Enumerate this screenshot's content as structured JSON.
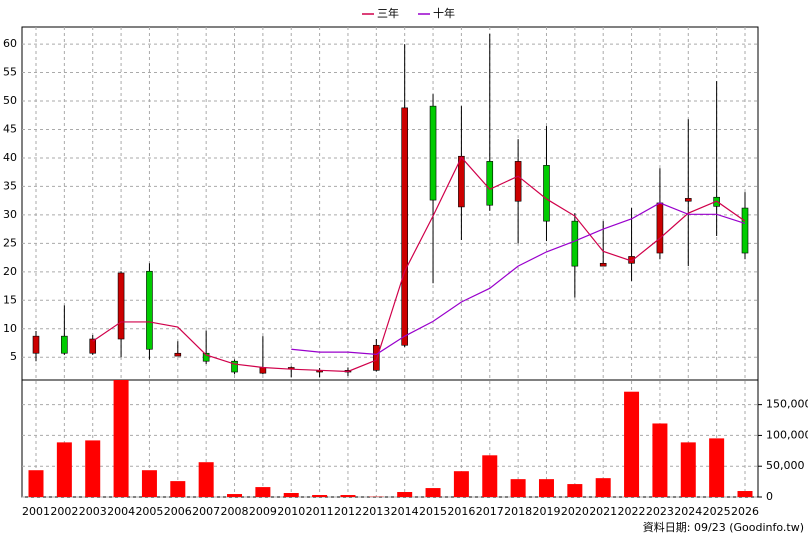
{
  "chart_data": [
    {
      "type": "candlestick",
      "categories": [
        "2001",
        "2002",
        "2003",
        "2004",
        "2005",
        "2006",
        "2007",
        "2008",
        "2009",
        "2010",
        "2011",
        "2012",
        "2013",
        "2014",
        "2015",
        "2016",
        "2017",
        "2018",
        "2019",
        "2020",
        "2021",
        "2022",
        "2023",
        "2024",
        "2025",
        "2026"
      ],
      "open": [
        5.7,
        8.7,
        5.7,
        8.2,
        20.1,
        5.2,
        5.7,
        4.3,
        2.2,
        2.9,
        2.4,
        2.4,
        2.7,
        7.1,
        49.1,
        31.4,
        39.4,
        32.4,
        38.7,
        28.9,
        21.0,
        21.5,
        23.3,
        32.4,
        33.1,
        31.2
      ],
      "close": [
        8.7,
        5.7,
        8.2,
        19.8,
        6.4,
        5.7,
        4.3,
        2.4,
        3.2,
        3.2,
        2.7,
        2.7,
        7.1,
        48.8,
        32.6,
        40.3,
        31.7,
        39.4,
        28.9,
        21.0,
        21.5,
        22.7,
        32.1,
        32.9,
        31.5,
        23.3
      ],
      "high": [
        9.6,
        14.1,
        8.9,
        20.1,
        21.5,
        7.8,
        9.7,
        4.6,
        8.7,
        3.4,
        3.1,
        3.2,
        8.2,
        60.0,
        51.2,
        49.1,
        61.8,
        43.3,
        45.6,
        30.3,
        28.9,
        31.2,
        38.2,
        46.8,
        53.5,
        34.0
      ],
      "low": [
        4.3,
        5.4,
        5.4,
        5.0,
        4.6,
        5.2,
        3.8,
        2.0,
        2.0,
        1.5,
        1.5,
        1.7,
        2.5,
        6.8,
        18.0,
        25.6,
        30.7,
        25.0,
        25.4,
        15.5,
        21.0,
        18.4,
        22.2,
        21.0,
        26.3,
        22.2
      ],
      "up_color": "#cc0000",
      "down_color": "#00cc00",
      "series": [
        {
          "name": "三年",
          "color": "#d0004a",
          "values": [
            null,
            null,
            7.8,
            11.2,
            11.2,
            10.3,
            5.4,
            3.8,
            3.2,
            2.9,
            2.7,
            2.5,
            4.5,
            20.1,
            29.8,
            40.1,
            34.5,
            36.8,
            32.8,
            29.8,
            23.6,
            21.9,
            25.9,
            30.3,
            32.4,
            28.9
          ]
        },
        {
          "name": "十年",
          "color": "#9900cc",
          "values": [
            null,
            null,
            null,
            null,
            null,
            null,
            null,
            null,
            null,
            6.4,
            5.9,
            5.9,
            5.5,
            8.7,
            11.3,
            14.7,
            17.1,
            21.0,
            23.5,
            25.4,
            27.5,
            29.3,
            32.1,
            30.1,
            30.1,
            28.5
          ]
        }
      ],
      "ylim": [
        1,
        63
      ],
      "yticks": [
        5,
        10,
        15,
        20,
        25,
        30,
        35,
        40,
        45,
        50,
        55,
        60
      ],
      "grid": true
    },
    {
      "type": "bar",
      "color": "#ff0000",
      "values": [
        43500,
        88700,
        91900,
        190000,
        43500,
        25800,
        56500,
        4800,
        16100,
        6500,
        3200,
        3200,
        500,
        8100,
        14500,
        41900,
        67700,
        29000,
        29000,
        21000,
        30600,
        171000,
        119400,
        88700,
        95200,
        9700
      ],
      "ylim": [
        0,
        190000
      ],
      "yticks": [
        0,
        {
          "value": 50000,
          "label": "50,000"
        },
        {
          "value": 100000,
          "label": "100,000"
        },
        {
          "value": 150000,
          "label": "150,000"
        }
      ],
      "grid": true
    }
  ],
  "footer": "資料日期: 09/23 (Goodinfo.tw)"
}
